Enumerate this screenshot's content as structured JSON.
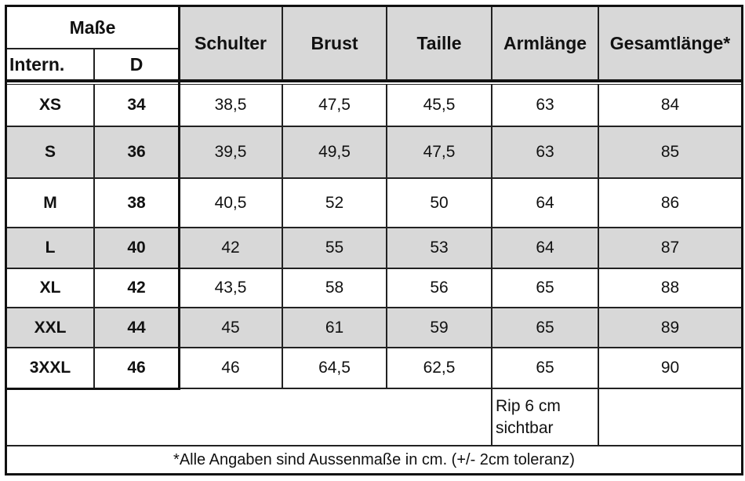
{
  "header": {
    "group": "Maße",
    "columns": [
      "Intern.",
      "D",
      "Schulter",
      "Brust",
      "Taille",
      "Armlänge",
      "Gesamtlänge*"
    ]
  },
  "rows": [
    [
      "XS",
      "34",
      "38,5",
      "47,5",
      "45,5",
      "63",
      "84"
    ],
    [
      "S",
      "36",
      "39,5",
      "49,5",
      "47,5",
      "63",
      "85"
    ],
    [
      "M",
      "38",
      "40,5",
      "52",
      "50",
      "64",
      "86"
    ],
    [
      "L",
      "40",
      "42",
      "55",
      "53",
      "64",
      "87"
    ],
    [
      "XL",
      "42",
      "43,5",
      "58",
      "56",
      "65",
      "88"
    ],
    [
      "XXL",
      "44",
      "45",
      "61",
      "59",
      "65",
      "89"
    ],
    [
      "3XXL",
      "46",
      "46",
      "64,5",
      "62,5",
      "65",
      "90"
    ]
  ],
  "note": [
    "Rip  6 cm",
    "sichtbar"
  ],
  "footnote": "*Alle Angaben sind Aussenmaße in cm. (+/- 2cm toleranz)"
}
